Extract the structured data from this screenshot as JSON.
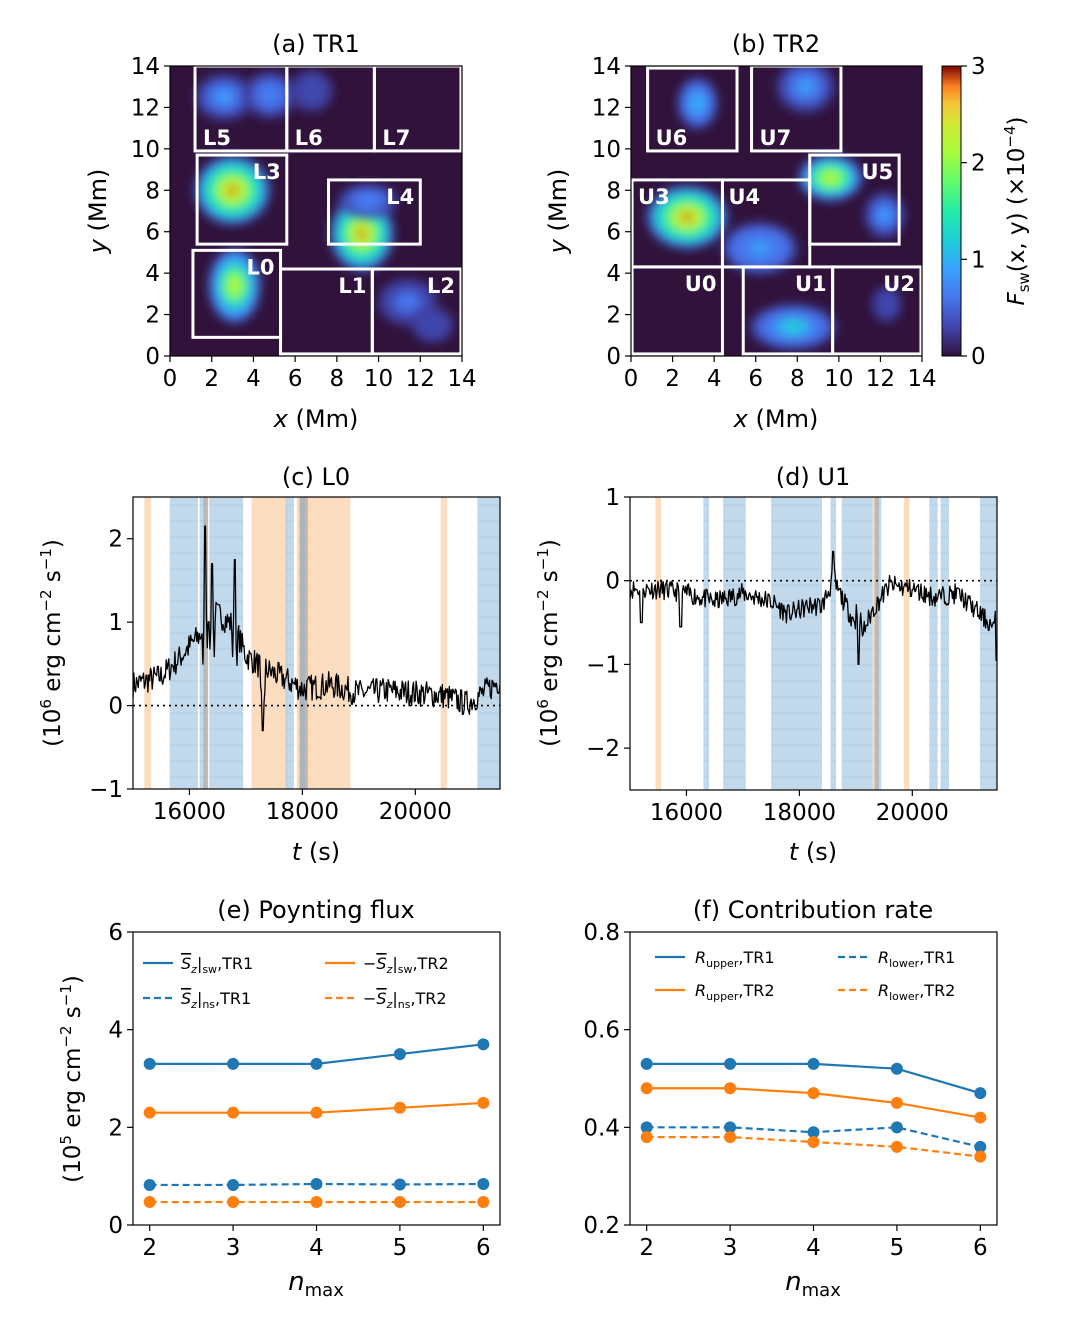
{
  "colors": {
    "dark_bg": "#30123b",
    "tr1": "#1f77b4",
    "tr2": "#ff7f0e",
    "orange_shade": "#fdd7b4",
    "blue_shade": "#b3d0e6",
    "box": "#ffffff",
    "trace": "#000000"
  },
  "chart_data": [
    {
      "id": "a",
      "type": "heatmap",
      "title": "(a) TR1",
      "xlabel_var": "x",
      "xlabel_unit": " (Mm)",
      "ylabel_var": "y",
      "ylabel_unit": " (Mm)",
      "xlim": [
        0,
        14
      ],
      "ylim": [
        0,
        14
      ],
      "xticks": [
        0,
        2,
        4,
        6,
        8,
        10,
        12,
        14
      ],
      "yticks": [
        0,
        2,
        4,
        6,
        8,
        10,
        12,
        14
      ],
      "blobs": [
        {
          "x": 3.0,
          "y": 8.0,
          "rx": 1.3,
          "ry": 1.2,
          "v": 2.9
        },
        {
          "x": 9.2,
          "y": 5.9,
          "rx": 1.1,
          "ry": 1.3,
          "v": 2.9
        },
        {
          "x": 3.1,
          "y": 3.4,
          "rx": 0.9,
          "ry": 1.3,
          "v": 2.5
        },
        {
          "x": 2.6,
          "y": 12.5,
          "rx": 1.0,
          "ry": 0.8,
          "v": 0.9
        },
        {
          "x": 4.8,
          "y": 12.6,
          "rx": 0.9,
          "ry": 0.8,
          "v": 0.8
        },
        {
          "x": 6.8,
          "y": 12.8,
          "rx": 0.7,
          "ry": 0.7,
          "v": 0.5
        },
        {
          "x": 11.4,
          "y": 2.6,
          "rx": 1.0,
          "ry": 0.8,
          "v": 0.7
        },
        {
          "x": 12.6,
          "y": 1.5,
          "rx": 0.7,
          "ry": 0.6,
          "v": 0.4
        },
        {
          "x": 9.5,
          "y": 7.5,
          "rx": 1.0,
          "ry": 0.6,
          "v": 0.8
        }
      ],
      "boxes": [
        {
          "label": "L0",
          "x0": 1.1,
          "x1": 5.3,
          "y0": 0.9,
          "y1": 5.1
        },
        {
          "label": "L1",
          "x0": 5.3,
          "x1": 9.7,
          "y0": 0.1,
          "y1": 4.2
        },
        {
          "label": "L2",
          "x0": 9.7,
          "x1": 13.95,
          "y0": 0.1,
          "y1": 4.2
        },
        {
          "label": "L3",
          "x0": 1.3,
          "x1": 5.6,
          "y0": 5.4,
          "y1": 9.7
        },
        {
          "label": "L4",
          "x0": 7.6,
          "x1": 12.0,
          "y0": 5.4,
          "y1": 8.5
        },
        {
          "label": "L5",
          "x0": 1.2,
          "x1": 5.6,
          "y0": 9.9,
          "y1": 14.0
        },
        {
          "label": "L6",
          "x0": 5.6,
          "x1": 9.8,
          "y0": 9.9,
          "y1": 14.0
        },
        {
          "label": "L7",
          "x0": 9.8,
          "x1": 13.95,
          "y0": 9.9,
          "y1": 14.0
        }
      ]
    },
    {
      "id": "b",
      "type": "heatmap",
      "title": "(b) TR2",
      "xlabel_var": "x",
      "xlabel_unit": " (Mm)",
      "ylabel_var": "y",
      "ylabel_unit": " (Mm)",
      "xlim": [
        0,
        14
      ],
      "ylim": [
        0,
        14
      ],
      "xticks": [
        0,
        2,
        4,
        6,
        8,
        10,
        12,
        14
      ],
      "yticks": [
        0,
        2,
        4,
        6,
        8,
        10,
        12,
        14
      ],
      "colorbar": {
        "label_var": "F",
        "label_sub": "sw",
        "label_rest": "(x, y) (×10",
        "label_exp": "−4",
        "label_end": ")",
        "ticks": [
          0,
          1,
          2,
          3
        ],
        "range": [
          0,
          3
        ]
      },
      "blobs": [
        {
          "x": 2.7,
          "y": 6.7,
          "rx": 1.4,
          "ry": 1.1,
          "v": 2.9
        },
        {
          "x": 9.6,
          "y": 8.6,
          "rx": 1.1,
          "ry": 0.8,
          "v": 2.6
        },
        {
          "x": 3.2,
          "y": 12.2,
          "rx": 0.7,
          "ry": 0.9,
          "v": 1.2
        },
        {
          "x": 7.8,
          "y": 1.4,
          "rx": 1.5,
          "ry": 0.8,
          "v": 1.3
        },
        {
          "x": 6.2,
          "y": 5.2,
          "rx": 1.3,
          "ry": 0.9,
          "v": 1.0
        },
        {
          "x": 8.4,
          "y": 13.0,
          "rx": 1.0,
          "ry": 0.9,
          "v": 0.9
        },
        {
          "x": 12.2,
          "y": 6.8,
          "rx": 0.7,
          "ry": 0.8,
          "v": 0.9
        },
        {
          "x": 12.3,
          "y": 2.5,
          "rx": 0.5,
          "ry": 0.6,
          "v": 0.4
        }
      ],
      "boxes": [
        {
          "label": "U0",
          "x0": 0.05,
          "x1": 4.4,
          "y0": 0.1,
          "y1": 4.3
        },
        {
          "label": "U1",
          "x0": 5.4,
          "x1": 9.7,
          "y0": 0.1,
          "y1": 4.3
        },
        {
          "label": "U2",
          "x0": 9.7,
          "x1": 13.95,
          "y0": 0.1,
          "y1": 4.3
        },
        {
          "label": "U3",
          "x0": 0.05,
          "x1": 4.4,
          "y0": 4.3,
          "y1": 8.5
        },
        {
          "label": "U4",
          "x0": 4.4,
          "x1": 8.6,
          "y0": 4.3,
          "y1": 8.5
        },
        {
          "label": "U5",
          "x0": 8.6,
          "x1": 12.9,
          "y0": 5.4,
          "y1": 9.7
        },
        {
          "label": "U6",
          "x0": 0.8,
          "x1": 5.1,
          "y0": 9.9,
          "y1": 13.9
        },
        {
          "label": "U7",
          "x0": 5.8,
          "x1": 10.1,
          "y0": 9.9,
          "y1": 14.0
        }
      ]
    },
    {
      "id": "c",
      "type": "line",
      "title": "(c) L0",
      "xlabel_var": "t",
      "xlabel_unit": " (s)",
      "ylabel_pre": "(10",
      "ylabel_exp1": "6",
      "ylabel_mid": " erg cm",
      "ylabel_exp2": "−2",
      "ylabel_mid2": " s",
      "ylabel_exp3": "−1",
      "ylabel_end": ")",
      "xlim": [
        15000,
        21500
      ],
      "ylim": [
        -1,
        2.5
      ],
      "xticks": [
        16000,
        18000,
        20000
      ],
      "yticks": [
        -1,
        0,
        1,
        2
      ],
      "orange_spans": [
        [
          15200,
          15320
        ],
        [
          17100,
          17750
        ],
        [
          18100,
          18850
        ],
        [
          20450,
          20560
        ],
        [
          16250,
          16330
        ],
        [
          17900,
          18100
        ]
      ],
      "blue_spans": [
        [
          15650,
          16150
        ],
        [
          16350,
          16950
        ],
        [
          17700,
          17850
        ],
        [
          17950,
          18050
        ],
        [
          21100,
          21500
        ],
        [
          16180,
          16280
        ]
      ],
      "gray_spans": [
        [
          16250,
          16330
        ],
        [
          17950,
          18100
        ]
      ],
      "trace_knots": [
        [
          15000,
          0.25
        ],
        [
          15500,
          0.35
        ],
        [
          15800,
          0.55
        ],
        [
          16050,
          0.75
        ],
        [
          16200,
          0.85
        ],
        [
          16350,
          1.15
        ],
        [
          16600,
          1.05
        ],
        [
          16800,
          0.95
        ],
        [
          17000,
          0.6
        ],
        [
          17300,
          0.45
        ],
        [
          17600,
          0.35
        ],
        [
          18000,
          0.2
        ],
        [
          18500,
          0.25
        ],
        [
          19000,
          0.15
        ],
        [
          19500,
          0.18
        ],
        [
          20000,
          0.15
        ],
        [
          20500,
          0.12
        ],
        [
          20900,
          0.02
        ],
        [
          21200,
          0.15
        ],
        [
          21500,
          0.3
        ]
      ],
      "trace_spikes": [
        [
          16280,
          2.15
        ],
        [
          16400,
          1.7
        ],
        [
          16800,
          1.75
        ],
        [
          17300,
          -0.3
        ]
      ],
      "trace_noise": 0.16,
      "trace_seed": 7
    },
    {
      "id": "d",
      "type": "line",
      "title": "(d) U1",
      "xlabel_var": "t",
      "xlabel_unit": " (s)",
      "ylabel_pre": "(10",
      "ylabel_exp1": "6",
      "ylabel_mid": " erg cm",
      "ylabel_exp2": "−2",
      "ylabel_mid2": " s",
      "ylabel_exp3": "−1",
      "ylabel_end": ")",
      "xlim": [
        15000,
        21500
      ],
      "ylim": [
        -2.5,
        1
      ],
      "xticks": [
        16000,
        18000,
        20000
      ],
      "yticks": [
        -2,
        -1,
        0,
        1
      ],
      "orange_spans": [
        [
          15450,
          15550
        ],
        [
          19300,
          19420
        ],
        [
          19850,
          19950
        ]
      ],
      "blue_spans": [
        [
          16300,
          16400
        ],
        [
          16650,
          17050
        ],
        [
          17500,
          18400
        ],
        [
          18550,
          18650
        ],
        [
          18750,
          19300
        ],
        [
          19380,
          19450
        ],
        [
          20300,
          20450
        ],
        [
          20500,
          20650
        ],
        [
          21200,
          21500
        ]
      ],
      "gray_spans": [
        [
          19330,
          19400
        ]
      ],
      "trace_knots": [
        [
          15000,
          -0.1
        ],
        [
          15500,
          -0.1
        ],
        [
          16000,
          -0.15
        ],
        [
          16500,
          -0.25
        ],
        [
          17000,
          -0.15
        ],
        [
          17500,
          -0.25
        ],
        [
          17800,
          -0.4
        ],
        [
          18200,
          -0.3
        ],
        [
          18400,
          -0.3
        ],
        [
          18600,
          0.0
        ],
        [
          18900,
          -0.4
        ],
        [
          19100,
          -0.65
        ],
        [
          19300,
          -0.35
        ],
        [
          19600,
          -0.05
        ],
        [
          20000,
          -0.1
        ],
        [
          20400,
          -0.2
        ],
        [
          20800,
          -0.15
        ],
        [
          21200,
          -0.4
        ],
        [
          21500,
          -0.6
        ]
      ],
      "trace_spikes": [
        [
          18600,
          0.35
        ],
        [
          19050,
          -1.0
        ],
        [
          21500,
          -0.95
        ],
        [
          15200,
          -0.5
        ],
        [
          15900,
          -0.55
        ]
      ],
      "trace_noise": 0.12,
      "trace_seed": 11
    },
    {
      "id": "e",
      "type": "line",
      "title": "(e) Poynting flux",
      "xlabel_var": "n",
      "xlabel_sub": "max",
      "ylabel_pre": "(10",
      "ylabel_exp1": "5",
      "ylabel_mid": " erg cm",
      "ylabel_exp2": "−2",
      "ylabel_mid2": " s",
      "ylabel_exp3": "−1",
      "ylabel_end": ")",
      "xlim": [
        1.8,
        6.2
      ],
      "ylim": [
        0,
        6
      ],
      "xticks": [
        2,
        3,
        4,
        5,
        6
      ],
      "yticks": [
        0,
        2,
        4,
        6
      ],
      "x": [
        2,
        3,
        4,
        5,
        6
      ],
      "series": [
        {
          "id": "e1",
          "color_key": "tr1",
          "dash": false,
          "values": [
            3.3,
            3.3,
            3.3,
            3.5,
            3.7
          ],
          "leg_sign": "",
          "leg_sub": "sw",
          "leg_tail": ",TR1"
        },
        {
          "id": "e2",
          "color_key": "tr2",
          "dash": false,
          "values": [
            2.3,
            2.3,
            2.3,
            2.4,
            2.5
          ],
          "leg_sign": "−",
          "leg_sub": "sw",
          "leg_tail": ",TR2"
        },
        {
          "id": "e3",
          "color_key": "tr1",
          "dash": true,
          "values": [
            0.82,
            0.82,
            0.84,
            0.83,
            0.84
          ],
          "leg_sign": "",
          "leg_sub": "ns",
          "leg_tail": ",TR1"
        },
        {
          "id": "e4",
          "color_key": "tr2",
          "dash": true,
          "values": [
            0.47,
            0.47,
            0.47,
            0.47,
            0.47
          ],
          "leg_sign": "−",
          "leg_sub": "ns",
          "leg_tail": ",TR2"
        }
      ]
    },
    {
      "id": "f",
      "type": "line",
      "title": "(f) Contribution rate",
      "xlabel_var": "n",
      "xlabel_sub": "max",
      "xlim": [
        1.8,
        6.2
      ],
      "ylim": [
        0.2,
        0.8
      ],
      "xticks": [
        2,
        3,
        4,
        5,
        6
      ],
      "yticks": [
        0.2,
        0.4,
        0.6,
        0.8
      ],
      "x": [
        2,
        3,
        4,
        5,
        6
      ],
      "series": [
        {
          "id": "f1",
          "color_key": "tr1",
          "dash": false,
          "values": [
            0.53,
            0.53,
            0.53,
            0.52,
            0.47
          ],
          "leg_var": "R",
          "leg_sub": "upper",
          "leg_tail": ",TR1"
        },
        {
          "id": "f2",
          "color_key": "tr2",
          "dash": false,
          "values": [
            0.48,
            0.48,
            0.47,
            0.45,
            0.42
          ],
          "leg_var": "R",
          "leg_sub": "upper",
          "leg_tail": ",TR2"
        },
        {
          "id": "f3",
          "color_key": "tr1",
          "dash": true,
          "values": [
            0.4,
            0.4,
            0.39,
            0.4,
            0.36
          ],
          "leg_var": "R",
          "leg_sub": "lower",
          "leg_tail": ",TR1"
        },
        {
          "id": "f4",
          "color_key": "tr2",
          "dash": true,
          "values": [
            0.38,
            0.38,
            0.37,
            0.36,
            0.34
          ],
          "leg_var": "R",
          "leg_sub": "lower",
          "leg_tail": ",TR2"
        }
      ]
    }
  ]
}
